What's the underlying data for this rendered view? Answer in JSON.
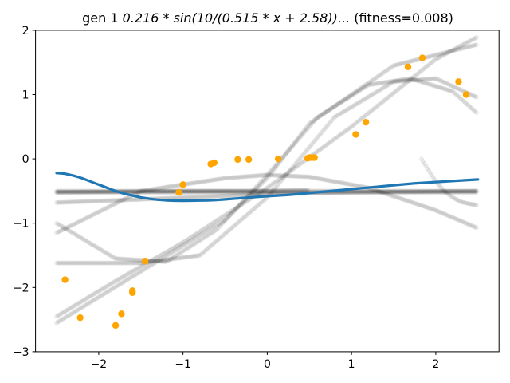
{
  "chart_data": {
    "type": "scatter",
    "title": "gen 1 0.216 * sin(10/(0.515 * x + 2.58))... (fitness=0.008)",
    "title_parts": {
      "prefix": "gen 1 ",
      "expr": "0.216 * sin(10/(0.515 * x + 2.58))...",
      "suffix": " (fitness=0.008)"
    },
    "xlabel": "",
    "ylabel": "",
    "xlim": [
      -2.75,
      2.75
    ],
    "ylim": [
      -3,
      2
    ],
    "xticks": [
      -2,
      -1,
      0,
      1,
      2
    ],
    "xtick_labels": [
      "−2",
      "−1",
      "0",
      "1",
      "2"
    ],
    "yticks": [
      -3,
      -2,
      -1,
      0,
      1,
      2
    ],
    "ytick_labels": [
      "−3",
      "−2",
      "−1",
      "0",
      "1",
      "2"
    ],
    "grid": false,
    "colors": {
      "points": "#ffa500",
      "best_fit": "#1f77b4",
      "population": "#000000"
    },
    "series": [
      {
        "name": "data points",
        "kind": "scatter",
        "x": [
          -2.4,
          -2.22,
          -1.8,
          -1.73,
          -1.6,
          -1.6,
          -1.45,
          -1.05,
          -1.0,
          -0.67,
          -0.63,
          -0.35,
          -0.22,
          0.13,
          0.48,
          0.5,
          0.53,
          0.56,
          1.05,
          1.17,
          1.67,
          1.84,
          2.27,
          2.36
        ],
        "y": [
          -1.88,
          -2.47,
          -2.59,
          -2.41,
          -2.08,
          -2.05,
          -1.59,
          -0.52,
          -0.4,
          -0.08,
          -0.06,
          -0.01,
          -0.01,
          0.0,
          0.01,
          0.02,
          0.02,
          0.02,
          0.38,
          0.57,
          1.43,
          1.57,
          1.2,
          1.0
        ]
      },
      {
        "name": "best individual",
        "kind": "line",
        "x": [
          -2.5,
          -2.4,
          -2.3,
          -2.2,
          -2.1,
          -2.0,
          -1.9,
          -1.8,
          -1.7,
          -1.6,
          -1.5,
          -1.4,
          -1.3,
          -1.2,
          -1.1,
          -1.0,
          -0.9,
          -0.8,
          -0.7,
          -0.6,
          -0.5,
          -0.4,
          -0.3,
          -0.2,
          -0.1,
          0.0,
          0.25,
          0.5,
          0.75,
          1.0,
          1.25,
          1.5,
          1.75,
          2.0,
          2.25,
          2.5
        ],
        "y": [
          -0.22,
          -0.23,
          -0.26,
          -0.3,
          -0.35,
          -0.4,
          -0.45,
          -0.5,
          -0.54,
          -0.57,
          -0.6,
          -0.62,
          -0.635,
          -0.645,
          -0.65,
          -0.652,
          -0.65,
          -0.648,
          -0.645,
          -0.64,
          -0.63,
          -0.62,
          -0.61,
          -0.6,
          -0.59,
          -0.58,
          -0.56,
          -0.53,
          -0.5,
          -0.47,
          -0.44,
          -0.41,
          -0.38,
          -0.36,
          -0.34,
          -0.32
        ]
      }
    ],
    "population_curves": [
      {
        "x": [
          -2.5,
          2.5
        ],
        "y": [
          -0.5,
          -0.5
        ]
      },
      {
        "x": [
          -2.5,
          2.5
        ],
        "y": [
          -0.52,
          -0.52
        ]
      },
      {
        "x": [
          -2.5,
          -1.5,
          0,
          1.0,
          2.5
        ],
        "y": [
          -0.68,
          -0.63,
          -0.55,
          -0.52,
          -0.5
        ]
      },
      {
        "x": [
          -2.5,
          -1.8,
          -1.0,
          0.0,
          1.0,
          2.0,
          2.5
        ],
        "y": [
          -2.45,
          -1.9,
          -1.3,
          -0.45,
          0.5,
          1.55,
          1.9
        ]
      },
      {
        "x": [
          -2.5,
          -1.5,
          -0.5,
          0.0,
          0.5,
          1.5,
          2.5
        ],
        "y": [
          -2.55,
          -1.75,
          -0.95,
          -0.3,
          0.55,
          1.45,
          1.78
        ]
      },
      {
        "x": [
          -2.5,
          -1.8,
          -1.2,
          -0.6,
          0.0,
          0.6,
          1.2,
          1.7,
          2.2,
          2.5
        ],
        "y": [
          -1.0,
          -1.55,
          -1.6,
          -1.1,
          -0.25,
          0.65,
          1.15,
          1.25,
          1.05,
          0.7
        ]
      },
      {
        "x": [
          -2.5,
          -1.5,
          -0.8,
          0.0,
          0.8,
          1.5,
          2.0,
          2.5
        ],
        "y": [
          -1.62,
          -1.62,
          -1.5,
          -0.6,
          0.65,
          1.2,
          1.25,
          0.95
        ]
      },
      {
        "x": [
          -2.5,
          -1.5,
          -0.5,
          0.0,
          0.5,
          1.2,
          2.0,
          2.5
        ],
        "y": [
          -1.15,
          -0.5,
          -0.3,
          -0.25,
          -0.28,
          -0.45,
          -0.8,
          -1.08
        ]
      },
      {
        "x": [
          -2.5,
          -1.0,
          0.0,
          0.5
        ],
        "y": [
          -0.52,
          -0.5,
          -0.5,
          -0.48
        ]
      },
      {
        "x": [
          1.83,
          1.9,
          2.0,
          2.1,
          2.2,
          2.3,
          2.4,
          2.5
        ],
        "y": [
          0.0,
          -0.15,
          -0.35,
          -0.5,
          -0.6,
          -0.67,
          -0.7,
          -0.72
        ]
      }
    ]
  }
}
